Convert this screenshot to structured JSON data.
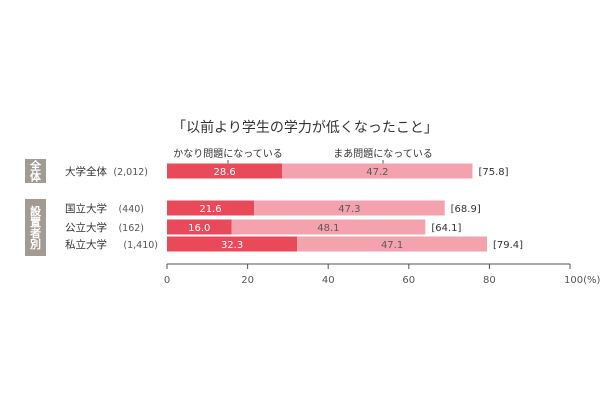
{
  "chart_data": {
    "type": "bar",
    "stacked": true,
    "orientation": "horizontal",
    "title": "「以前より学生の学力が低くなったこと」",
    "groups": [
      {
        "label": "全体",
        "rows": [
          0
        ]
      },
      {
        "label": "設置者別",
        "rows": [
          1,
          2,
          3
        ]
      }
    ],
    "categories": [
      "大学全体",
      "国立大学",
      "公立大学",
      "私立大学"
    ],
    "sample_sizes": [
      "(2,012)",
      "(440)",
      "(162)",
      "(1,410)"
    ],
    "series": [
      {
        "name": "かなり問題になっている",
        "values": [
          28.6,
          21.6,
          16.0,
          32.3
        ],
        "labels": [
          "28.6",
          "21.6",
          "16.0",
          "32.3"
        ],
        "color": "#e84a5a"
      },
      {
        "name": "まあ問題になっている",
        "values": [
          47.2,
          47.3,
          48.1,
          47.1
        ],
        "labels": [
          "47.2",
          "47.3",
          "48.1",
          "47.1"
        ],
        "color": "#f4a2ad"
      }
    ],
    "totals": [
      "[75.8]",
      "[68.9]",
      "[64.1]",
      "[79.4]"
    ],
    "xlim": [
      0,
      100
    ],
    "xticks": [
      "0",
      "20",
      "40",
      "60",
      "80",
      "100(%)"
    ],
    "xtick_values": [
      0,
      20,
      40,
      60,
      80,
      100
    ],
    "group_label_color": "#a39a94"
  }
}
